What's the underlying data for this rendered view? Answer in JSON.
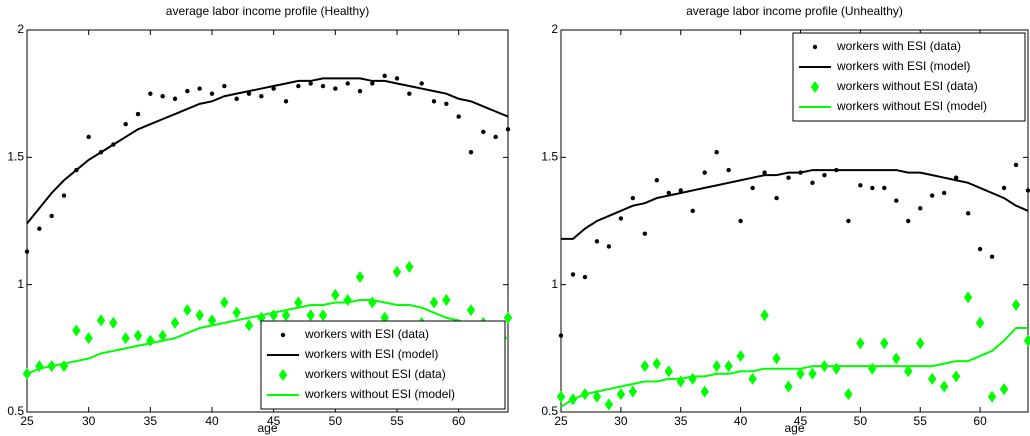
{
  "chart_data": [
    {
      "type": "line",
      "title": "average labor income profile (Healthy)",
      "xlabel": "age",
      "x": [
        25,
        26,
        27,
        28,
        29,
        30,
        31,
        32,
        33,
        34,
        35,
        36,
        37,
        38,
        39,
        40,
        41,
        42,
        43,
        44,
        45,
        46,
        47,
        48,
        49,
        50,
        51,
        52,
        53,
        54,
        55,
        56,
        57,
        58,
        59,
        60,
        61,
        62,
        63,
        64
      ],
      "xlim": [
        25,
        64
      ],
      "ylim": [
        0.5,
        2
      ],
      "xticks": [
        25,
        30,
        35,
        40,
        45,
        50,
        55,
        60
      ],
      "yticks": [
        0.5,
        1,
        1.5,
        2
      ],
      "legend": "lower right",
      "series": [
        {
          "name": "workers with ESI (data)",
          "color": "#000000",
          "marker": "dot",
          "values": [
            1.13,
            1.22,
            1.27,
            1.35,
            1.45,
            1.58,
            1.52,
            1.55,
            1.63,
            1.67,
            1.75,
            1.74,
            1.73,
            1.76,
            1.77,
            1.75,
            1.78,
            1.73,
            1.75,
            1.74,
            1.77,
            1.72,
            1.78,
            1.79,
            1.78,
            1.77,
            1.79,
            1.76,
            1.79,
            1.82,
            1.81,
            1.75,
            1.79,
            1.72,
            1.71,
            1.66,
            1.52,
            1.6,
            1.58,
            1.61
          ]
        },
        {
          "name": "workers with ESI (model)",
          "color": "#000000",
          "marker": "line",
          "values": [
            1.24,
            1.3,
            1.36,
            1.41,
            1.45,
            1.49,
            1.52,
            1.55,
            1.58,
            1.61,
            1.63,
            1.65,
            1.67,
            1.69,
            1.71,
            1.72,
            1.74,
            1.75,
            1.76,
            1.77,
            1.78,
            1.79,
            1.8,
            1.8,
            1.81,
            1.81,
            1.81,
            1.81,
            1.8,
            1.8,
            1.79,
            1.78,
            1.77,
            1.76,
            1.75,
            1.73,
            1.72,
            1.7,
            1.68,
            1.66
          ]
        },
        {
          "name": "workers without ESI (data)",
          "color": "#00ff00",
          "marker": "diamond",
          "values": [
            0.65,
            0.68,
            0.68,
            0.68,
            0.82,
            0.79,
            0.86,
            0.85,
            0.79,
            0.8,
            0.78,
            0.8,
            0.85,
            0.9,
            0.88,
            0.86,
            0.93,
            0.89,
            0.84,
            0.87,
            0.88,
            0.88,
            0.93,
            0.88,
            0.88,
            0.96,
            0.94,
            1.03,
            0.93,
            0.87,
            1.05,
            1.07,
            0.85,
            0.93,
            0.94,
            0.84,
            0.9,
            0.85,
            0.8,
            0.87
          ]
        },
        {
          "name": "workers without ESI (model)",
          "color": "#00ff00",
          "marker": "line",
          "values": [
            0.65,
            0.67,
            0.68,
            0.69,
            0.7,
            0.71,
            0.73,
            0.74,
            0.75,
            0.76,
            0.77,
            0.78,
            0.79,
            0.81,
            0.83,
            0.84,
            0.85,
            0.86,
            0.87,
            0.88,
            0.89,
            0.9,
            0.91,
            0.92,
            0.92,
            0.93,
            0.93,
            0.94,
            0.94,
            0.93,
            0.92,
            0.92,
            0.91,
            0.89,
            0.87,
            0.86,
            0.84,
            0.82,
            0.8,
            0.79
          ]
        }
      ]
    },
    {
      "type": "line",
      "title": "average labor income profile (Unhealthy)",
      "xlabel": "age",
      "x": [
        25,
        26,
        27,
        28,
        29,
        30,
        31,
        32,
        33,
        34,
        35,
        36,
        37,
        38,
        39,
        40,
        41,
        42,
        43,
        44,
        45,
        46,
        47,
        48,
        49,
        50,
        51,
        52,
        53,
        54,
        55,
        56,
        57,
        58,
        59,
        60,
        61,
        62,
        63,
        64
      ],
      "xlim": [
        25,
        64
      ],
      "ylim": [
        0.5,
        2
      ],
      "xticks": [
        25,
        30,
        35,
        40,
        45,
        50,
        55,
        60
      ],
      "yticks": [
        0.5,
        1,
        1.5,
        2
      ],
      "legend": "upper right",
      "series": [
        {
          "name": "workers with ESI (data)",
          "color": "#000000",
          "marker": "dot",
          "values": [
            0.8,
            1.04,
            1.03,
            1.17,
            1.15,
            1.26,
            1.34,
            1.2,
            1.41,
            1.36,
            1.37,
            1.29,
            1.44,
            1.52,
            1.45,
            1.25,
            1.38,
            1.44,
            1.34,
            1.42,
            1.44,
            1.4,
            1.43,
            1.45,
            1.25,
            1.39,
            1.38,
            1.38,
            1.33,
            1.25,
            1.3,
            1.35,
            1.36,
            1.42,
            1.28,
            1.14,
            1.11,
            1.38,
            1.47,
            1.37
          ]
        },
        {
          "name": "workers with ESI (model)",
          "color": "#000000",
          "marker": "line",
          "values": [
            1.18,
            1.18,
            1.22,
            1.25,
            1.27,
            1.29,
            1.31,
            1.32,
            1.34,
            1.35,
            1.36,
            1.37,
            1.38,
            1.39,
            1.4,
            1.41,
            1.42,
            1.43,
            1.43,
            1.44,
            1.44,
            1.45,
            1.45,
            1.45,
            1.45,
            1.45,
            1.45,
            1.45,
            1.45,
            1.44,
            1.44,
            1.43,
            1.42,
            1.41,
            1.4,
            1.38,
            1.36,
            1.34,
            1.31,
            1.29
          ]
        },
        {
          "name": "workers without ESI (data)",
          "color": "#00ff00",
          "marker": "diamond",
          "values": [
            0.56,
            0.55,
            0.57,
            0.56,
            0.53,
            0.57,
            0.58,
            0.68,
            0.69,
            0.66,
            0.62,
            0.63,
            0.58,
            0.68,
            0.68,
            0.72,
            0.63,
            0.88,
            0.71,
            0.6,
            0.65,
            0.65,
            0.68,
            0.67,
            0.57,
            0.77,
            0.67,
            0.77,
            0.71,
            0.66,
            0.77,
            0.63,
            0.6,
            0.64,
            0.95,
            0.85,
            0.56,
            0.59,
            0.92,
            0.78
          ]
        },
        {
          "name": "workers without ESI (model)",
          "color": "#00ff00",
          "marker": "line",
          "values": [
            0.52,
            0.55,
            0.57,
            0.58,
            0.59,
            0.6,
            0.61,
            0.62,
            0.62,
            0.63,
            0.63,
            0.64,
            0.64,
            0.65,
            0.65,
            0.66,
            0.66,
            0.67,
            0.67,
            0.67,
            0.67,
            0.68,
            0.68,
            0.68,
            0.68,
            0.68,
            0.68,
            0.68,
            0.68,
            0.68,
            0.68,
            0.68,
            0.69,
            0.7,
            0.7,
            0.72,
            0.74,
            0.78,
            0.83,
            0.83
          ]
        }
      ]
    }
  ]
}
